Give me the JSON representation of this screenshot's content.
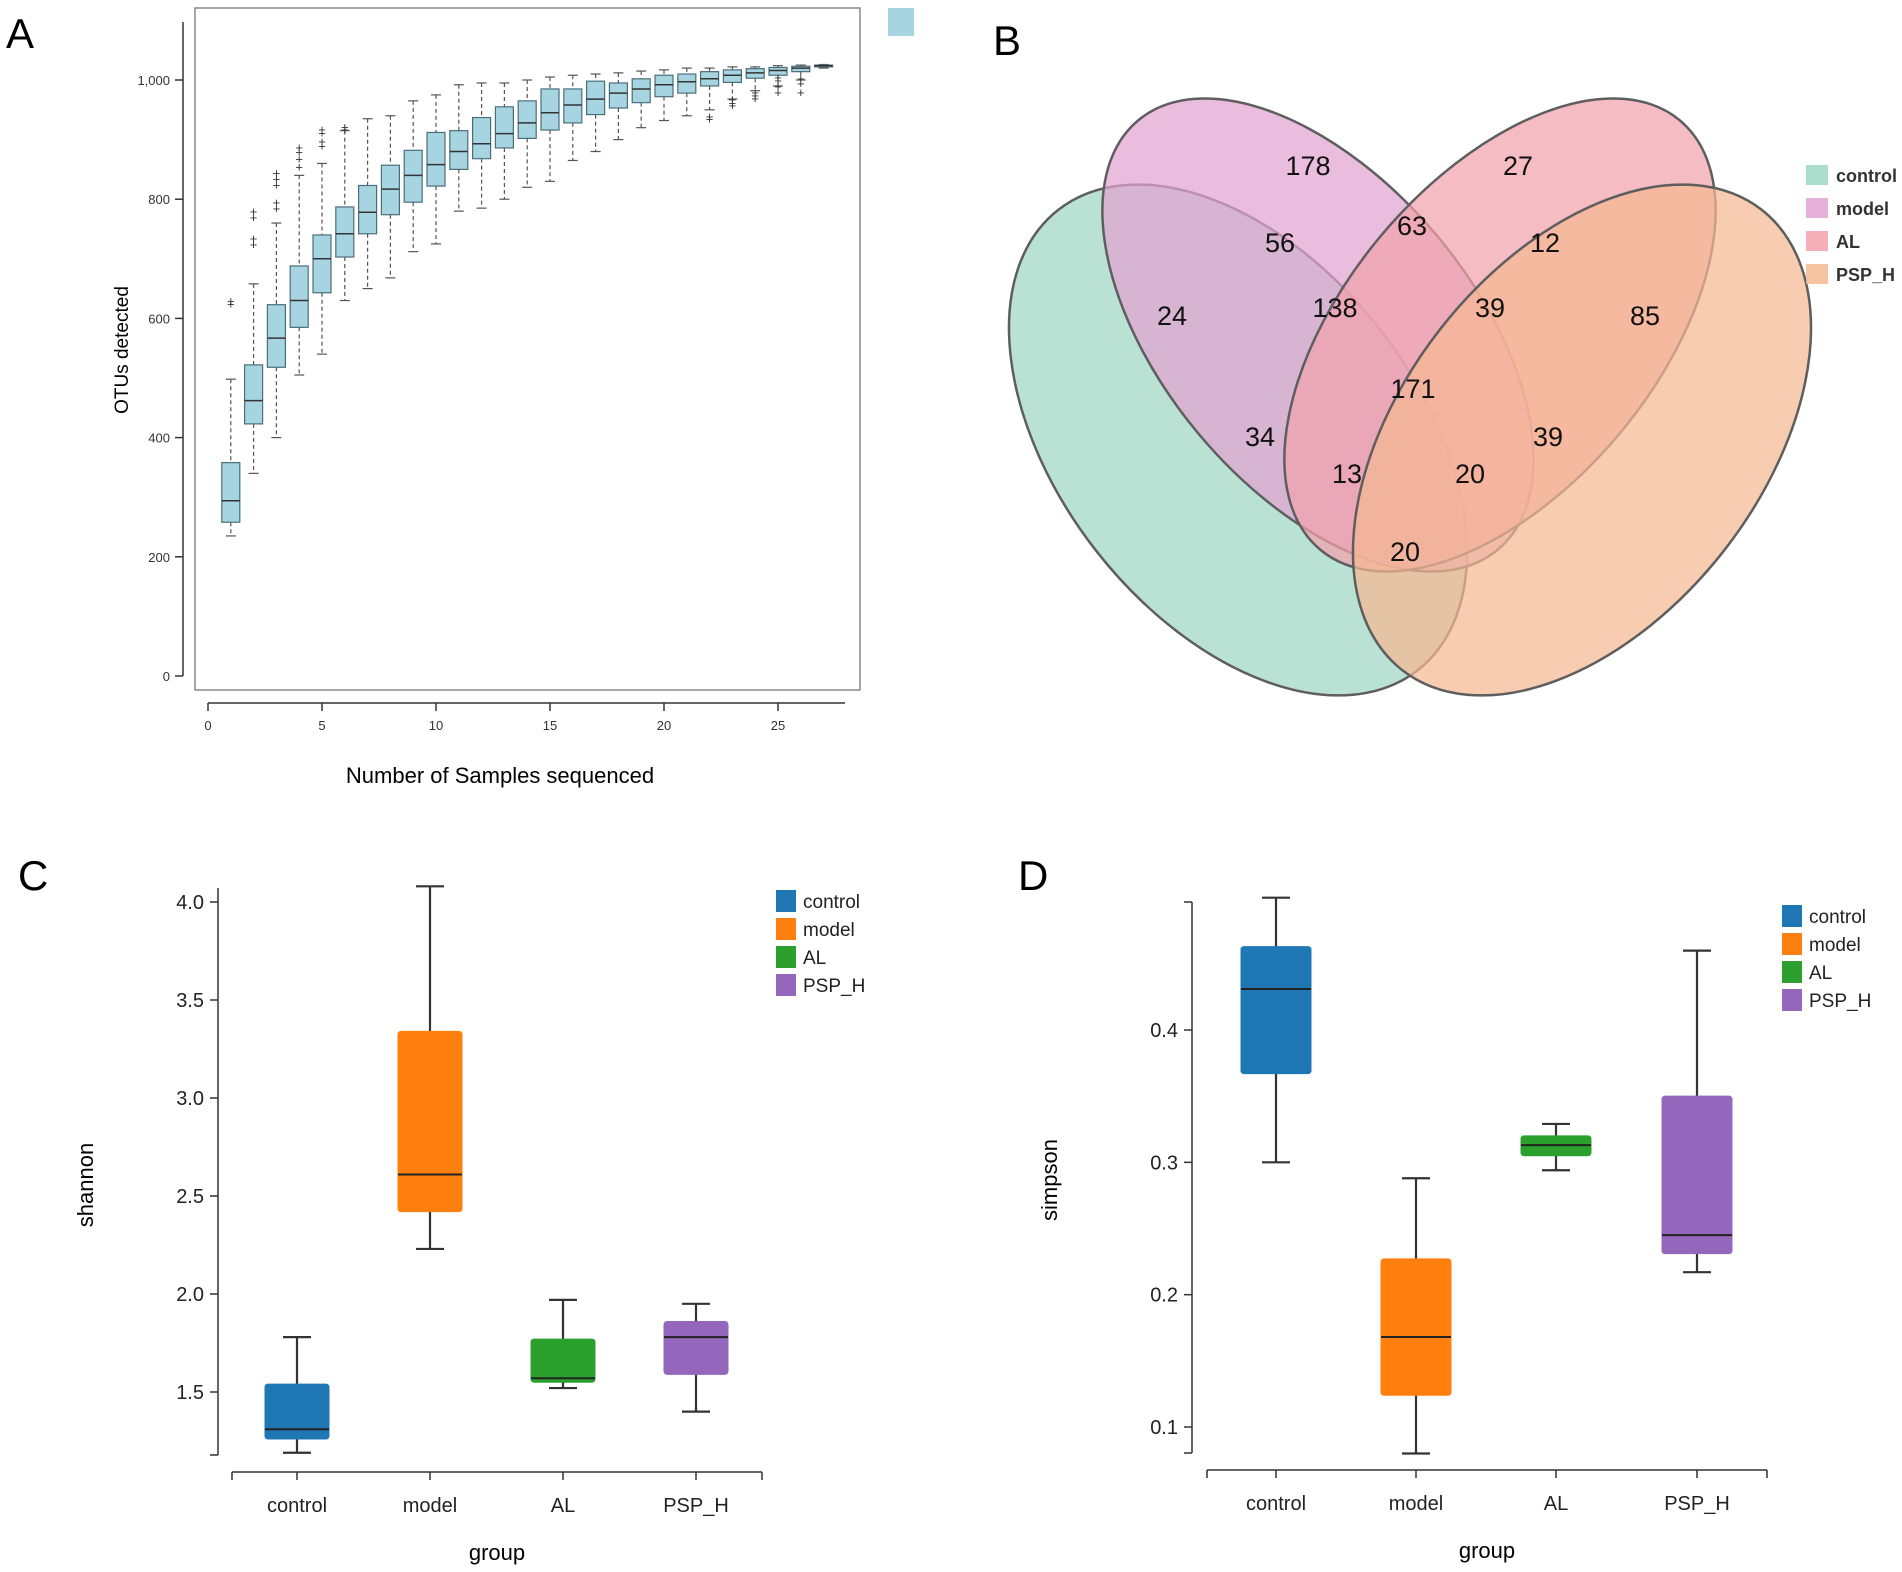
{
  "panel_labels": [
    "A",
    "B",
    "C",
    "D"
  ],
  "chart_data": [
    {
      "panel": "A",
      "type": "box",
      "title": "",
      "xlabel": "Number of Samples sequenced",
      "ylabel": "OTUs detected",
      "xlim": [
        0,
        28
      ],
      "ylim": [
        0,
        1050
      ],
      "xticks": [
        0,
        5,
        10,
        15,
        20,
        25
      ],
      "yticks": [
        0,
        200,
        400,
        600,
        800,
        1000
      ],
      "ytick_labels": [
        "0",
        "200",
        "400",
        "600",
        "800",
        "1,000"
      ],
      "box_color": "#a6d4e0",
      "legend_swatch_color": "#a6d4e0",
      "boxes": [
        {
          "x": 1,
          "whislo": 235,
          "q1": 258,
          "med": 294,
          "q3": 358,
          "whishi": 498,
          "fliers": [
            625,
            630
          ]
        },
        {
          "x": 2,
          "whislo": 340,
          "q1": 423,
          "med": 462,
          "q3": 522,
          "whishi": 658,
          "fliers": [
            725,
            735,
            770,
            780
          ]
        },
        {
          "x": 3,
          "whislo": 400,
          "q1": 518,
          "med": 567,
          "q3": 623,
          "whishi": 760,
          "fliers": [
            785,
            795,
            825,
            835,
            845
          ]
        },
        {
          "x": 4,
          "whislo": 505,
          "q1": 585,
          "med": 630,
          "q3": 688,
          "whishi": 840,
          "fliers": [
            855,
            868,
            880,
            888
          ]
        },
        {
          "x": 5,
          "whislo": 540,
          "q1": 643,
          "med": 700,
          "q3": 740,
          "whishi": 860,
          "fliers": [
            890,
            898,
            912,
            918
          ]
        },
        {
          "x": 6,
          "whislo": 630,
          "q1": 703,
          "med": 742,
          "q3": 787,
          "whishi": 915,
          "fliers": [
            918,
            922
          ]
        },
        {
          "x": 7,
          "whislo": 650,
          "q1": 742,
          "med": 778,
          "q3": 823,
          "whishi": 935,
          "fliers": []
        },
        {
          "x": 8,
          "whislo": 668,
          "q1": 774,
          "med": 817,
          "q3": 857,
          "whishi": 940,
          "fliers": []
        },
        {
          "x": 9,
          "whislo": 712,
          "q1": 795,
          "med": 840,
          "q3": 882,
          "whishi": 965,
          "fliers": []
        },
        {
          "x": 10,
          "whislo": 725,
          "q1": 822,
          "med": 858,
          "q3": 912,
          "whishi": 975,
          "fliers": []
        },
        {
          "x": 11,
          "whislo": 780,
          "q1": 850,
          "med": 880,
          "q3": 915,
          "whishi": 992,
          "fliers": []
        },
        {
          "x": 12,
          "whislo": 785,
          "q1": 868,
          "med": 893,
          "q3": 937,
          "whishi": 995,
          "fliers": []
        },
        {
          "x": 13,
          "whislo": 800,
          "q1": 886,
          "med": 910,
          "q3": 955,
          "whishi": 995,
          "fliers": []
        },
        {
          "x": 14,
          "whislo": 820,
          "q1": 902,
          "med": 928,
          "q3": 965,
          "whishi": 1000,
          "fliers": []
        },
        {
          "x": 15,
          "whislo": 830,
          "q1": 916,
          "med": 945,
          "q3": 985,
          "whishi": 1005,
          "fliers": []
        },
        {
          "x": 16,
          "whislo": 865,
          "q1": 928,
          "med": 958,
          "q3": 985,
          "whishi": 1008,
          "fliers": []
        },
        {
          "x": 17,
          "whislo": 880,
          "q1": 942,
          "med": 968,
          "q3": 998,
          "whishi": 1010,
          "fliers": []
        },
        {
          "x": 18,
          "whislo": 900,
          "q1": 953,
          "med": 978,
          "q3": 995,
          "whishi": 1012,
          "fliers": []
        },
        {
          "x": 19,
          "whislo": 920,
          "q1": 962,
          "med": 985,
          "q3": 1002,
          "whishi": 1015,
          "fliers": []
        },
        {
          "x": 20,
          "whislo": 932,
          "q1": 972,
          "med": 992,
          "q3": 1008,
          "whishi": 1017,
          "fliers": []
        },
        {
          "x": 21,
          "whislo": 940,
          "q1": 978,
          "med": 997,
          "q3": 1010,
          "whishi": 1020,
          "fliers": []
        },
        {
          "x": 22,
          "whislo": 950,
          "q1": 990,
          "med": 1002,
          "q3": 1014,
          "whishi": 1020,
          "fliers": [
            935,
            940
          ]
        },
        {
          "x": 23,
          "whislo": 968,
          "q1": 996,
          "med": 1008,
          "q3": 1017,
          "whishi": 1022,
          "fliers": [
            958,
            962,
            968
          ]
        },
        {
          "x": 24,
          "whislo": 982,
          "q1": 1003,
          "med": 1012,
          "q3": 1019,
          "whishi": 1022,
          "fliers": [
            970,
            975,
            980
          ]
        },
        {
          "x": 25,
          "whislo": 990,
          "q1": 1008,
          "med": 1016,
          "q3": 1021,
          "whishi": 1024,
          "fliers": [
            980,
            990,
            1000,
            1005
          ]
        },
        {
          "x": 26,
          "whislo": 1000,
          "q1": 1014,
          "med": 1020,
          "q3": 1023,
          "whishi": 1025,
          "fliers": [
            980,
            995,
            1003
          ]
        },
        {
          "x": 27,
          "whislo": 1020,
          "q1": 1022,
          "med": 1024,
          "q3": 1025,
          "whishi": 1026,
          "fliers": []
        }
      ]
    },
    {
      "panel": "B",
      "type": "venn",
      "sets": [
        "control",
        "model",
        "AL",
        "PSP_H"
      ],
      "colors": {
        "control": "#9ed7c3",
        "model": "#e2a3d1",
        "AL": "#f1a2ac",
        "PSP_H": "#f5b893"
      },
      "regions": [
        {
          "sets": [
            "control"
          ],
          "value": 24
        },
        {
          "sets": [
            "model"
          ],
          "value": 178
        },
        {
          "sets": [
            "AL"
          ],
          "value": 27
        },
        {
          "sets": [
            "PSP_H"
          ],
          "value": 85
        },
        {
          "sets": [
            "control",
            "model"
          ],
          "value": 56
        },
        {
          "sets": [
            "model",
            "AL"
          ],
          "value": 63
        },
        {
          "sets": [
            "AL",
            "PSP_H"
          ],
          "value": 12
        },
        {
          "sets": [
            "control",
            "model",
            "AL"
          ],
          "value": 138
        },
        {
          "sets": [
            "model",
            "AL",
            "PSP_H"
          ],
          "value": 39
        },
        {
          "sets": [
            "control",
            "model",
            "AL",
            "PSP_H"
          ],
          "value": 171
        },
        {
          "sets": [
            "control",
            "AL"
          ],
          "value": 34
        },
        {
          "sets": [
            "model",
            "PSP_H"
          ],
          "value": 39
        },
        {
          "sets": [
            "control",
            "AL",
            "PSP_H"
          ],
          "value": 13
        },
        {
          "sets": [
            "control",
            "model",
            "PSP_H"
          ],
          "value": 20
        },
        {
          "sets": [
            "control",
            "PSP_H"
          ],
          "value": 20
        }
      ]
    },
    {
      "panel": "C",
      "type": "box",
      "xlabel": "group",
      "ylabel": "shannon",
      "ylim": [
        1.18,
        4.1
      ],
      "yticks": [
        1.5,
        2.0,
        2.5,
        3.0,
        3.5,
        4.0
      ],
      "ytick_labels": [
        "1.5",
        "2.0",
        "2.5",
        "3.0",
        "3.5",
        "4.0"
      ],
      "categories": [
        "control",
        "model",
        "AL",
        "PSP_H"
      ],
      "legend": [
        "control",
        "model",
        "AL",
        "PSP_H"
      ],
      "colors": [
        "#1f77b4",
        "#ff7f0e",
        "#2ca02c",
        "#9467bd"
      ],
      "boxes": [
        {
          "whislo": 1.19,
          "q1": 1.26,
          "med": 1.31,
          "q3": 1.54,
          "whishi": 1.78
        },
        {
          "whislo": 2.23,
          "q1": 2.42,
          "med": 2.61,
          "q3": 3.34,
          "whishi": 4.08
        },
        {
          "whislo": 1.52,
          "q1": 1.55,
          "med": 1.57,
          "q3": 1.77,
          "whishi": 1.97
        },
        {
          "whislo": 1.4,
          "q1": 1.59,
          "med": 1.78,
          "q3": 1.86,
          "whishi": 1.95
        }
      ]
    },
    {
      "panel": "D",
      "type": "box",
      "xlabel": "group",
      "ylabel": "simpson",
      "ylim": [
        0.08,
        0.5
      ],
      "yticks": [
        0.1,
        0.2,
        0.3,
        0.4
      ],
      "ytick_labels": [
        "0.1",
        "0.2",
        "0.3",
        "0.4"
      ],
      "categories": [
        "control",
        "model",
        "AL",
        "PSP_H"
      ],
      "legend": [
        "control",
        "model",
        "AL",
        "PSP_H"
      ],
      "colors": [
        "#1f77b4",
        "#ff7f0e",
        "#2ca02c",
        "#9467bd"
      ],
      "boxes": [
        {
          "whislo": 0.3,
          "q1": 0.367,
          "med": 0.431,
          "q3": 0.463,
          "whishi": 0.5
        },
        {
          "whislo": 0.08,
          "q1": 0.124,
          "med": 0.168,
          "q3": 0.227,
          "whishi": 0.288
        },
        {
          "whislo": 0.294,
          "q1": 0.305,
          "med": 0.313,
          "q3": 0.32,
          "whishi": 0.329
        },
        {
          "whislo": 0.217,
          "q1": 0.231,
          "med": 0.245,
          "q3": 0.35,
          "whishi": 0.46
        }
      ]
    }
  ]
}
